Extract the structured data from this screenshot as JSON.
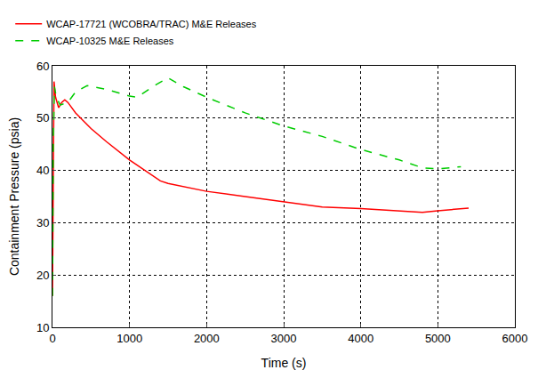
{
  "chart_data": {
    "type": "line",
    "x_label": "Time (s)",
    "y_label": "Containment Pressure (psia)",
    "xlim": [
      0,
      6000
    ],
    "xticks": [
      0,
      1000,
      2000,
      3000,
      4000,
      5000,
      6000
    ],
    "ylim": [
      10,
      60
    ],
    "yticks": [
      10,
      20,
      30,
      40,
      50,
      60
    ],
    "grid": true,
    "legend": "top left",
    "series": [
      {
        "name": "WCAP-17721 (WCOBRA/TRAC) M&E Releases",
        "color": "#ff0000",
        "line_style": "solid",
        "x": [
          0,
          10,
          20,
          40,
          80,
          120,
          160,
          200,
          300,
          500,
          700,
          1000,
          1200,
          1400,
          1500,
          2000,
          2500,
          3000,
          3500,
          4000,
          4500,
          4800,
          5000,
          5400
        ],
        "values": [
          16,
          40,
          57,
          54,
          52,
          53,
          53.5,
          53,
          51,
          48,
          45.5,
          42,
          40,
          38,
          37.5,
          36,
          35,
          34,
          33,
          32.7,
          32.3,
          32,
          32.3,
          32.8
        ]
      },
      {
        "name": "WCAP-10325 M&E Releases",
        "color": "#00cc00",
        "line_style": "dashed",
        "x": [
          0,
          10,
          25,
          50,
          100,
          200,
          300,
          450,
          700,
          1000,
          1100,
          1300,
          1500,
          1700,
          2000,
          2500,
          3000,
          3500,
          4000,
          4500,
          4800,
          5000,
          5300
        ],
        "values": [
          16,
          45,
          56,
          54,
          52.5,
          53,
          55,
          56.2,
          55.5,
          54.2,
          54,
          56,
          57.7,
          56,
          54,
          51,
          48.5,
          46.5,
          44,
          42,
          40.5,
          40.3,
          40.7
        ]
      }
    ]
  }
}
